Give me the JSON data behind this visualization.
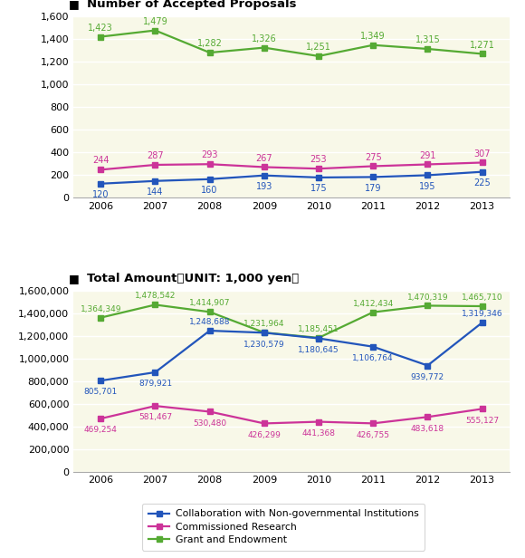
{
  "years": [
    2006,
    2007,
    2008,
    2009,
    2010,
    2011,
    2012,
    2013
  ],
  "top_chart": {
    "title": "Number of Accepted Proposals",
    "ylim": [
      0,
      1600
    ],
    "yticks": [
      0,
      200,
      400,
      600,
      800,
      1000,
      1200,
      1400,
      1600
    ],
    "blue": [
      120,
      144,
      160,
      193,
      175,
      179,
      195,
      225
    ],
    "pink": [
      244,
      287,
      293,
      267,
      253,
      275,
      291,
      307
    ],
    "green": [
      1423,
      1479,
      1282,
      1326,
      1251,
      1349,
      1315,
      1271
    ]
  },
  "bottom_chart": {
    "title": "Total Amount（UNIT: 1,000 yen）",
    "ylim": [
      0,
      1600000
    ],
    "yticks": [
      0,
      200000,
      400000,
      600000,
      800000,
      1000000,
      1200000,
      1400000,
      1600000
    ],
    "blue": [
      805701,
      879921,
      1248688,
      1230579,
      1180645,
      1106764,
      939772,
      1319346
    ],
    "pink": [
      469254,
      581467,
      530480,
      426299,
      441368,
      426755,
      483618,
      555127
    ],
    "green": [
      1364349,
      1478542,
      1414907,
      1231964,
      1185451,
      1412434,
      1470319,
      1465710
    ]
  },
  "blue_color": "#2255bb",
  "pink_color": "#cc3399",
  "green_color": "#55aa33",
  "bg_color": "#f8f8e8",
  "legend_labels": [
    "Collaboration with Non-governmental Institutions",
    "Commissioned Research",
    "Grant and Endowment"
  ]
}
